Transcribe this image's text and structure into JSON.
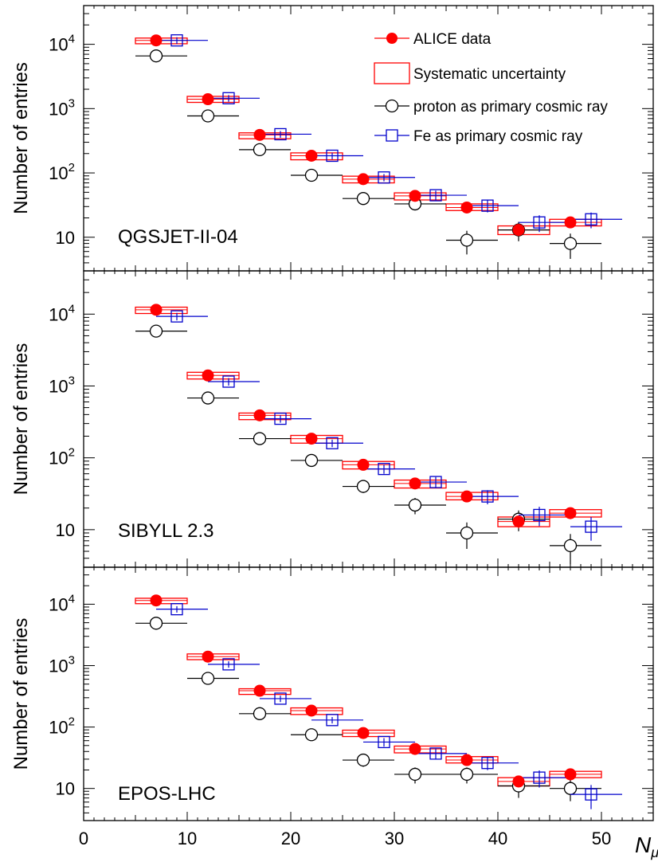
{
  "colors": {
    "data": "#ff0000",
    "syst": "#ff0000",
    "proton": "#000000",
    "fe": "#0000cc",
    "axis": "#000000"
  },
  "legend": {
    "items": [
      {
        "label": "ALICE data",
        "marker": "filled-circle",
        "color": "#ff0000"
      },
      {
        "label": "Systematic uncertainty",
        "marker": "open-box",
        "color": "#ff0000"
      },
      {
        "label": "proton as primary cosmic ray",
        "marker": "open-circle",
        "color": "#000000"
      },
      {
        "label": "Fe as primary cosmic ray",
        "marker": "open-square",
        "color": "#0000cc"
      }
    ]
  },
  "chart_data": [
    {
      "type": "scatter",
      "model": "QGSJET-II-04",
      "xlabel": "N_μ",
      "ylabel": "Number of entries",
      "xlim": [
        0,
        55
      ],
      "ylim": [
        3,
        40000
      ],
      "yscale": "log",
      "x_ticks": [
        0,
        10,
        20,
        30,
        40,
        50
      ],
      "y_ticks": [
        {
          "value": 10,
          "label": "10"
        },
        {
          "value": 100,
          "label": "10^2"
        },
        {
          "value": 1000,
          "label": "10^3"
        },
        {
          "value": 10000,
          "label": "10^4"
        }
      ],
      "bins": [
        5,
        10,
        15,
        20,
        25,
        30,
        35,
        40,
        45,
        50
      ],
      "series": [
        {
          "name": "ALICE data",
          "x": [
            7,
            12,
            17,
            22,
            27,
            32,
            37,
            42,
            47
          ],
          "y": [
            11500,
            1400,
            390,
            185,
            80,
            44,
            29,
            13,
            17
          ],
          "syst_low": [
            10200,
            1250,
            340,
            160,
            70,
            38,
            26,
            11,
            15
          ],
          "syst_high": [
            12500,
            1550,
            420,
            205,
            89,
            49,
            33,
            15,
            19
          ]
        },
        {
          "name": "proton as primary cosmic ray",
          "x": [
            7,
            12,
            17,
            22,
            27,
            32,
            37,
            42,
            47
          ],
          "y": [
            6600,
            770,
            230,
            92,
            40,
            33,
            9,
            13,
            8
          ]
        },
        {
          "name": "Fe as primary cosmic ray",
          "x": [
            9,
            14,
            19,
            24,
            29,
            34,
            39,
            44,
            49
          ],
          "y": [
            11500,
            1450,
            400,
            185,
            85,
            45,
            31,
            17,
            19
          ]
        }
      ]
    },
    {
      "type": "scatter",
      "model": "SIBYLL 2.3",
      "xlabel": "N_μ",
      "ylabel": "Number of entries",
      "xlim": [
        0,
        55
      ],
      "ylim": [
        3,
        40000
      ],
      "yscale": "log",
      "x_ticks": [
        0,
        10,
        20,
        30,
        40,
        50
      ],
      "y_ticks": [
        {
          "value": 10,
          "label": "10"
        },
        {
          "value": 100,
          "label": "10^2"
        },
        {
          "value": 1000,
          "label": "10^3"
        },
        {
          "value": 10000,
          "label": "10^4"
        }
      ],
      "bins": [
        5,
        10,
        15,
        20,
        25,
        30,
        35,
        40,
        45,
        50
      ],
      "series": [
        {
          "name": "ALICE data",
          "x": [
            7,
            12,
            17,
            22,
            27,
            32,
            37,
            42,
            47
          ],
          "y": [
            11500,
            1400,
            390,
            185,
            80,
            44,
            29,
            13,
            17
          ],
          "syst_low": [
            10200,
            1250,
            340,
            160,
            70,
            38,
            26,
            11,
            15
          ],
          "syst_high": [
            12500,
            1550,
            420,
            205,
            89,
            49,
            33,
            15,
            19
          ]
        },
        {
          "name": "proton as primary cosmic ray",
          "x": [
            7,
            12,
            17,
            22,
            27,
            32,
            37,
            42,
            47
          ],
          "y": [
            5800,
            680,
            185,
            92,
            40,
            22,
            9,
            14,
            6
          ]
        },
        {
          "name": "Fe as primary cosmic ray",
          "x": [
            9,
            14,
            19,
            24,
            29,
            34,
            39,
            44,
            49
          ],
          "y": [
            9300,
            1150,
            350,
            160,
            70,
            46,
            29,
            16,
            11
          ]
        }
      ]
    },
    {
      "type": "scatter",
      "model": "EPOS-LHC",
      "xlabel": "N_μ",
      "ylabel": "Number of entries",
      "xlim": [
        0,
        55
      ],
      "ylim": [
        3,
        40000
      ],
      "yscale": "log",
      "x_ticks": [
        0,
        10,
        20,
        30,
        40,
        50
      ],
      "y_ticks": [
        {
          "value": 10,
          "label": "10"
        },
        {
          "value": 100,
          "label": "10^2"
        },
        {
          "value": 1000,
          "label": "10^3"
        },
        {
          "value": 10000,
          "label": "10^4"
        }
      ],
      "bins": [
        5,
        10,
        15,
        20,
        25,
        30,
        35,
        40,
        45,
        50
      ],
      "series": [
        {
          "name": "ALICE data",
          "x": [
            7,
            12,
            17,
            22,
            27,
            32,
            37,
            42,
            47
          ],
          "y": [
            11500,
            1400,
            390,
            185,
            80,
            44,
            29,
            13,
            17
          ],
          "syst_low": [
            10200,
            1250,
            340,
            160,
            70,
            38,
            26,
            11,
            15
          ],
          "syst_high": [
            12500,
            1550,
            420,
            205,
            89,
            49,
            33,
            15,
            19
          ]
        },
        {
          "name": "proton as primary cosmic ray",
          "x": [
            7,
            12,
            17,
            22,
            27,
            32,
            37,
            42,
            47
          ],
          "y": [
            4900,
            620,
            165,
            75,
            29,
            17,
            17,
            11,
            10
          ]
        },
        {
          "name": "Fe as primary cosmic ray",
          "x": [
            9,
            14,
            19,
            24,
            29,
            34,
            39,
            44,
            49
          ],
          "y": [
            8300,
            1050,
            290,
            130,
            57,
            37,
            26,
            15,
            8
          ]
        }
      ]
    }
  ]
}
